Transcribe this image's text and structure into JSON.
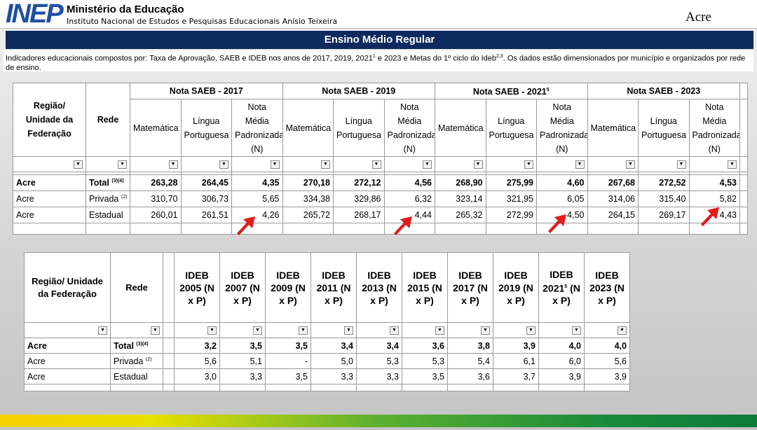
{
  "header": {
    "logo": "INEP",
    "org": "Ministério da Educação",
    "institute": "Instituto Nacional de Estudos e Pesquisas Educacionais Anísio Teixeira",
    "state": "Acre"
  },
  "banner": "Ensino Médio Regular",
  "description": {
    "part1": "Indicadores educacionais compostos por: Taxa de Aprovação, SAEB e IDEB nos anos de 2017, 2019, 2021",
    "sup1": "1",
    "part2": " e 2023 e Metas do 1º ciclo do Ideb",
    "sup2": "2,3",
    "part3": ". Os dados estão dimensionados por município e organizados por rede de ensino."
  },
  "table1": {
    "region_header": "Região/ Unidade da Federação",
    "network_header": "Rede",
    "groups": [
      {
        "title": "Nota SAEB - 2017"
      },
      {
        "title": "Nota SAEB - 2019"
      },
      {
        "title": "Nota SAEB - 2021",
        "sup": "5"
      },
      {
        "title": "Nota SAEB - 2023"
      }
    ],
    "subheaders": [
      "Matemática",
      "Língua Portuguesa",
      "Nota Média Padronizada (N)"
    ],
    "rows": [
      {
        "region": "Acre",
        "network": "Total",
        "note": "(3)(4)",
        "values": [
          "263,28",
          "264,45",
          "4,35",
          "270,18",
          "272,12",
          "4,56",
          "268,90",
          "275,99",
          "4,60",
          "267,68",
          "272,52",
          "4,53"
        ]
      },
      {
        "region": "Acre",
        "network": "Privada",
        "note": "(2)",
        "values": [
          "310,70",
          "306,73",
          "5,65",
          "334,38",
          "329,86",
          "6,32",
          "323,14",
          "321,95",
          "6,05",
          "314,06",
          "315,40",
          "5,82"
        ]
      },
      {
        "region": "Acre",
        "network": "Estadual",
        "values": [
          "260,01",
          "261,51",
          "4,26",
          "265,72",
          "268,17",
          "4,44",
          "265,32",
          "272,99",
          "4,50",
          "264,15",
          "269,17",
          "4,43"
        ]
      }
    ]
  },
  "table2": {
    "region_header": "Região/ Unidade da Federação",
    "network_header": "Rede",
    "columns": [
      {
        "title": "IDEB 2005 (N x P)"
      },
      {
        "title": "IDEB 2007 (N x P)"
      },
      {
        "title": "IDEB 2009 (N x P)"
      },
      {
        "title": "IDEB 2011 (N x P)"
      },
      {
        "title": "IDEB 2013 (N x P)"
      },
      {
        "title": "IDEB 2015 (N x P)"
      },
      {
        "title": "IDEB 2017 (N x P)"
      },
      {
        "title": "IDEB 2019 (N x P)"
      },
      {
        "title": "IDEB 2021",
        "sup": "5",
        "title2": "(N x P)"
      },
      {
        "title": "IDEB 2023 (N x P)"
      }
    ],
    "rows": [
      {
        "region": "Acre",
        "network": "Total",
        "note": "(3)(4)",
        "values": [
          "3,2",
          "3,5",
          "3,5",
          "3,4",
          "3,4",
          "3,6",
          "3,8",
          "3,9",
          "4,0",
          "4,0"
        ]
      },
      {
        "region": "Acre",
        "network": "Privada",
        "note": "(2)",
        "values": [
          "5,6",
          "5,1",
          "-",
          "5,0",
          "5,3",
          "5,3",
          "5,4",
          "6,1",
          "6,0",
          "5,6"
        ]
      },
      {
        "region": "Acre",
        "network": "Estadual",
        "values": [
          "3,0",
          "3,3",
          "3,5",
          "3,3",
          "3,3",
          "3,5",
          "3,6",
          "3,7",
          "3,9",
          "3,9"
        ]
      }
    ]
  }
}
